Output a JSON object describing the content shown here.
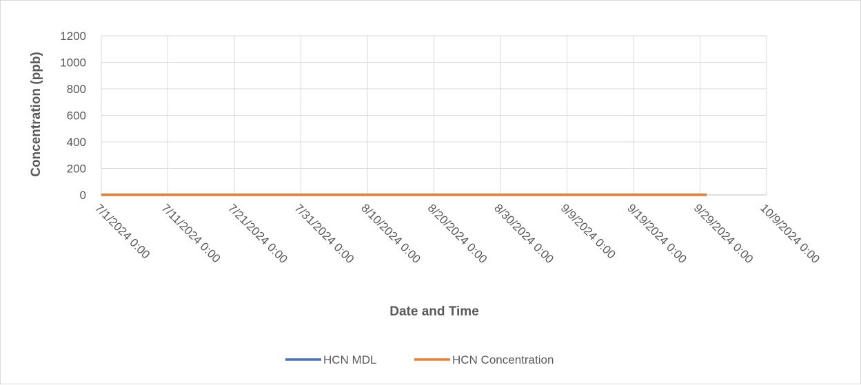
{
  "chart_data": {
    "type": "line",
    "title": "",
    "xlabel": "Date and Time",
    "ylabel": "Concentration (ppb)",
    "ylim": [
      0,
      1200
    ],
    "yticks": [
      "0",
      "200",
      "400",
      "600",
      "800",
      "1000",
      "1200"
    ],
    "xlim": [
      "7/1/2024 0:00",
      "10/9/2024 0:00"
    ],
    "xticks": [
      "7/1/2024 0:00",
      "7/11/2024 0:00",
      "7/21/2024 0:00",
      "7/31/2024 0:00",
      "8/10/2024 0:00",
      "8/20/2024 0:00",
      "8/30/2024 0:00",
      "9/9/2024 0:00",
      "9/19/2024 0:00",
      "9/29/2024 0:00",
      "10/9/2024 0:00"
    ],
    "grid": true,
    "legend_position": "bottom",
    "series": [
      {
        "name": "HCN MDL",
        "color": "#4472C4",
        "x": [
          "7/1/2024 0:00",
          "9/30/2024 0:00"
        ],
        "values": [
          1,
          1
        ]
      },
      {
        "name": "HCN Concentration",
        "color": "#ED7D31",
        "x": [
          "7/1/2024 0:00",
          "9/30/2024 0:00"
        ],
        "values": [
          0,
          0
        ]
      }
    ]
  }
}
